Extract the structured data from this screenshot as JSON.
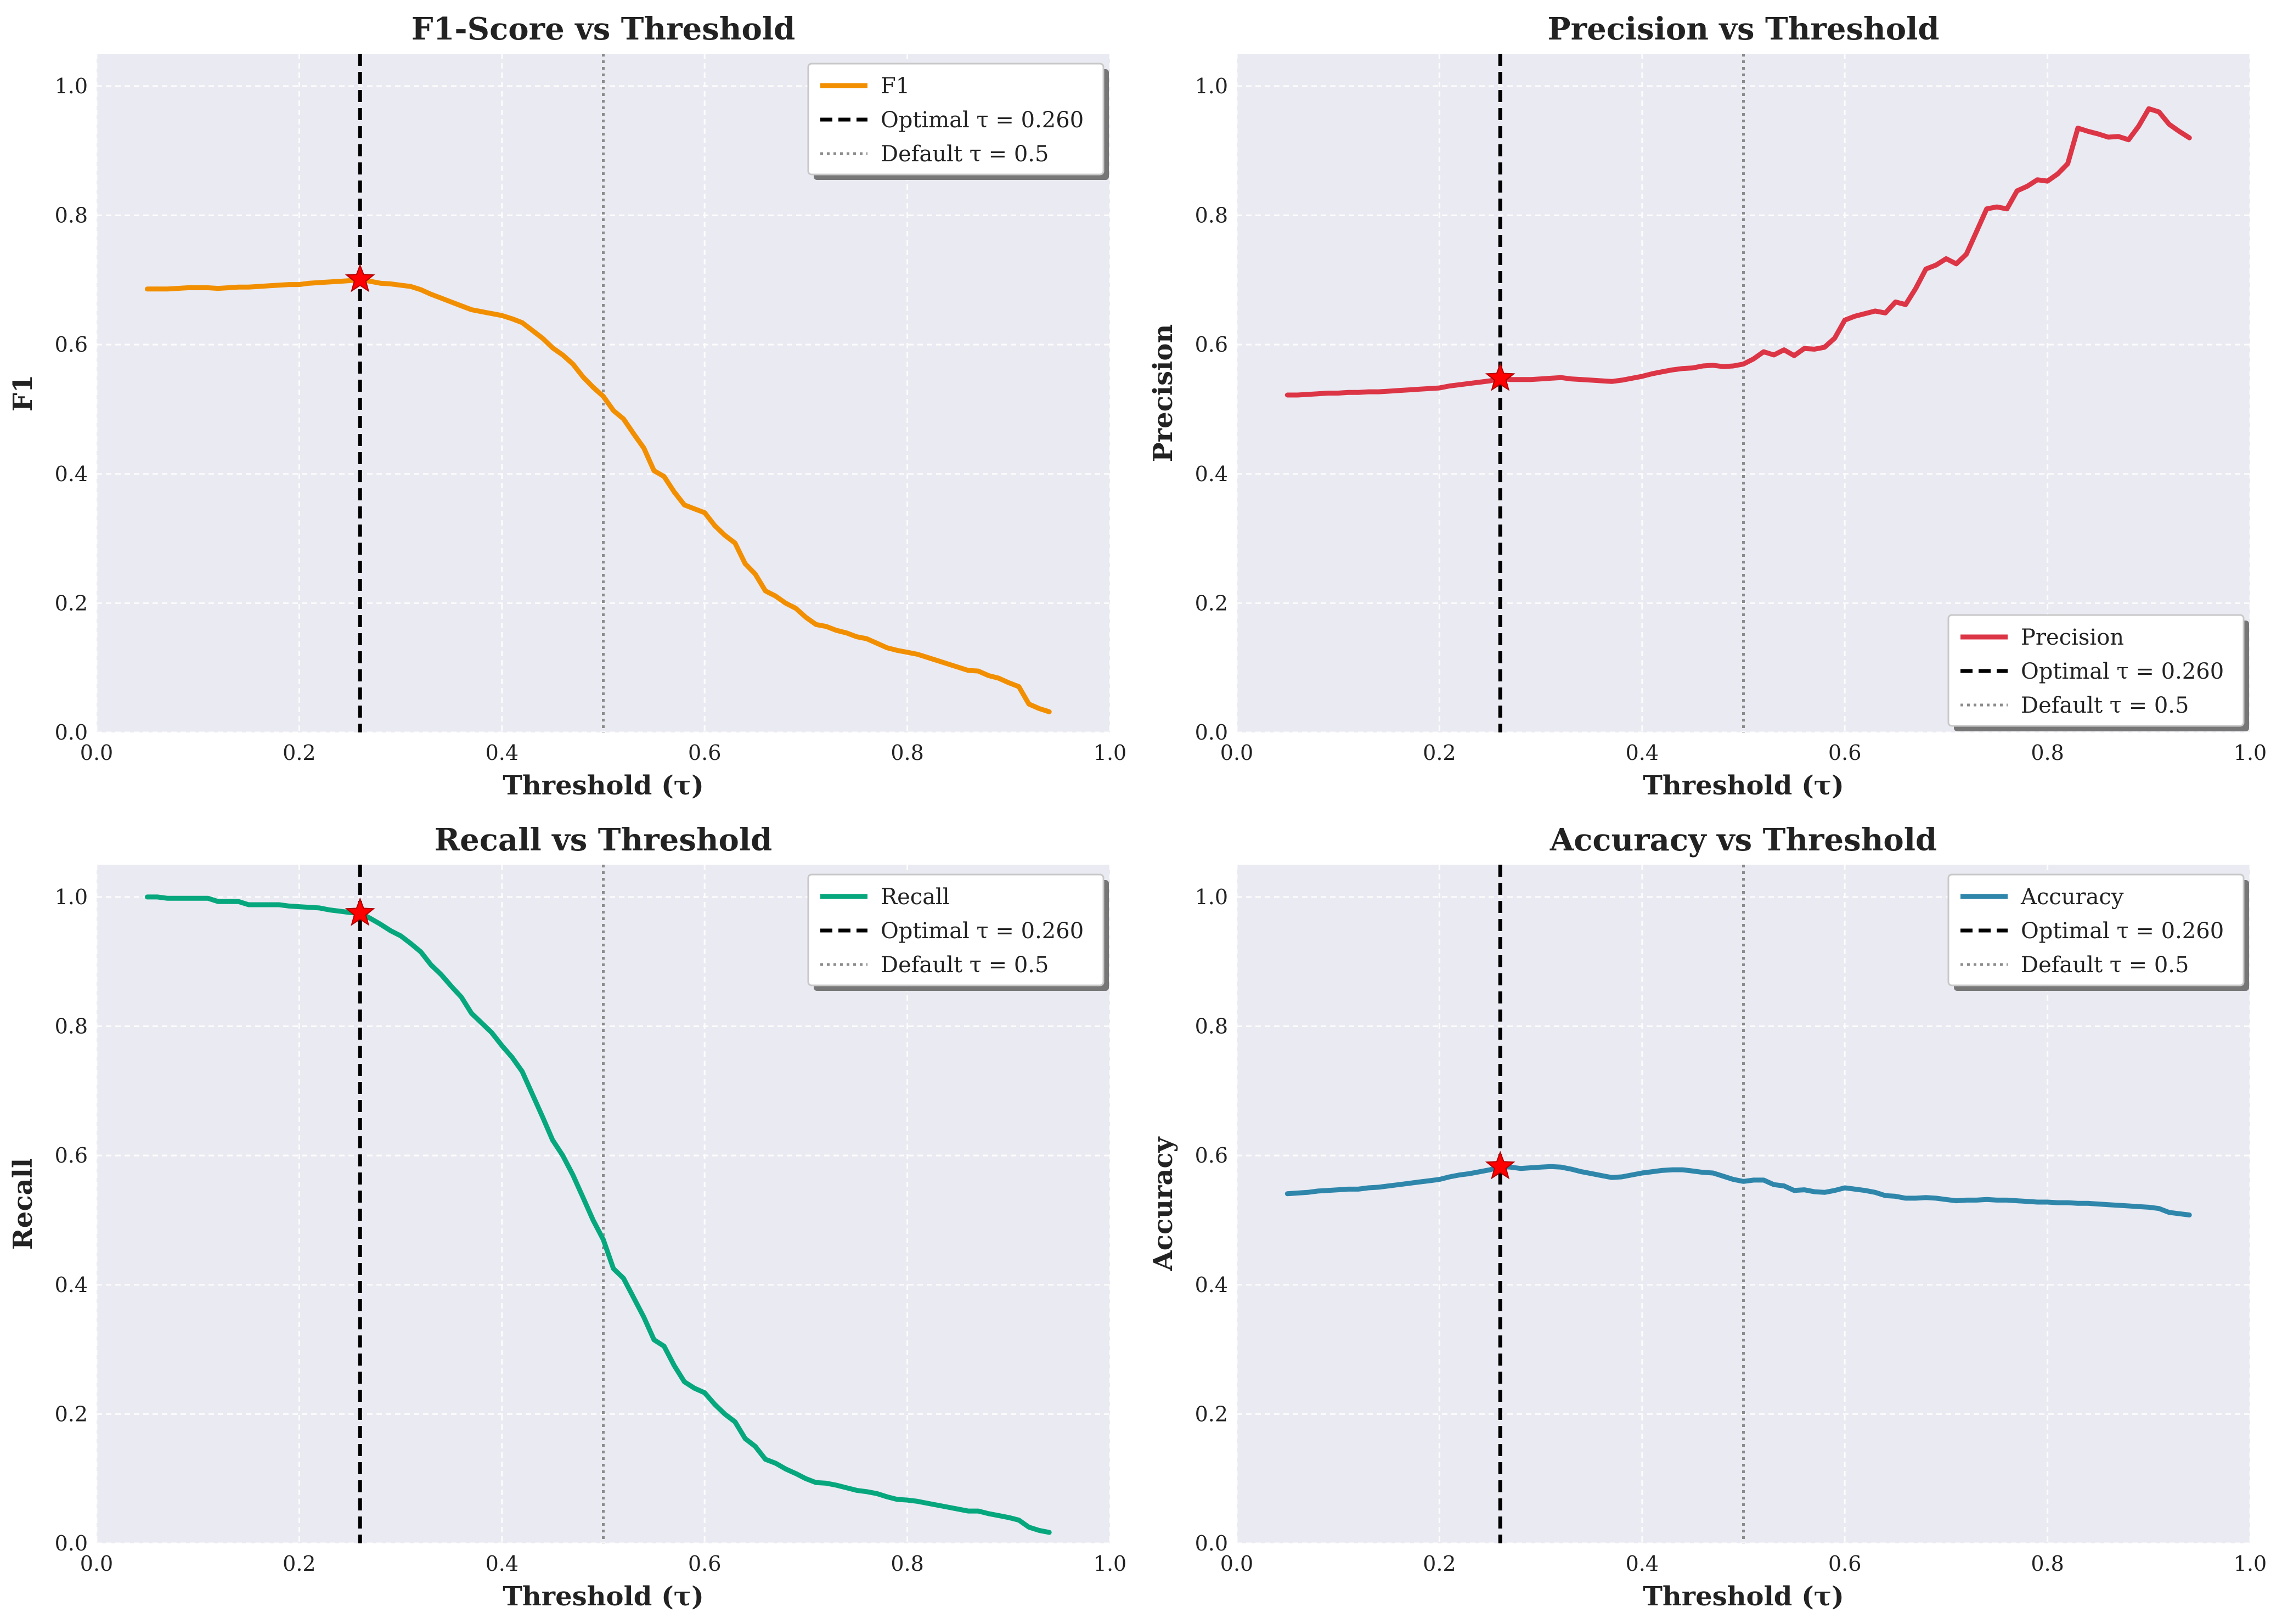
{
  "figure": {
    "background": "#ffffff",
    "plot_background": "#EAEAF2"
  },
  "chart_data": [
    {
      "type": "line",
      "title": "F1-Score vs Threshold",
      "xlabel": "Threshold (τ)",
      "ylabel": "F1",
      "xlim": [
        0.0,
        1.0
      ],
      "ylim": [
        0.0,
        1.05
      ],
      "xticks": [
        "0.0",
        "0.2",
        "0.4",
        "0.6",
        "0.8",
        "1.0"
      ],
      "yticks": [
        "0.0",
        "0.2",
        "0.4",
        "0.6",
        "0.8",
        "1.0"
      ],
      "grid": true,
      "legend_position": "top-right",
      "color": "#F18F01",
      "series": [
        {
          "name": "F1",
          "x": [
            0.05,
            0.06,
            0.07,
            0.08,
            0.09,
            0.1,
            0.11,
            0.12,
            0.13,
            0.14,
            0.15,
            0.16,
            0.17,
            0.18,
            0.19,
            0.2,
            0.21,
            0.22,
            0.23,
            0.24,
            0.25,
            0.26,
            0.27,
            0.28,
            0.29,
            0.3,
            0.31,
            0.32,
            0.33,
            0.34,
            0.35,
            0.36,
            0.37,
            0.38,
            0.39,
            0.4,
            0.41,
            0.42,
            0.43,
            0.44,
            0.45,
            0.46,
            0.47,
            0.48,
            0.49,
            0.5,
            0.51,
            0.52,
            0.53,
            0.54,
            0.55,
            0.56,
            0.57,
            0.58,
            0.59,
            0.6,
            0.61,
            0.62,
            0.63,
            0.64,
            0.65,
            0.66,
            0.67,
            0.68,
            0.69,
            0.7,
            0.71,
            0.72,
            0.73,
            0.74,
            0.75,
            0.76,
            0.77,
            0.78,
            0.79,
            0.8,
            0.81,
            0.82,
            0.83,
            0.84,
            0.85,
            0.86,
            0.87,
            0.88,
            0.89,
            0.9,
            0.91,
            0.92,
            0.93,
            0.94
          ],
          "y": [
            0.686,
            0.686,
            0.686,
            0.687,
            0.688,
            0.688,
            0.688,
            0.687,
            0.688,
            0.689,
            0.689,
            0.69,
            0.691,
            0.692,
            0.693,
            0.693,
            0.695,
            0.696,
            0.697,
            0.698,
            0.699,
            0.701,
            0.698,
            0.695,
            0.694,
            0.692,
            0.69,
            0.685,
            0.678,
            0.672,
            0.666,
            0.66,
            0.654,
            0.651,
            0.648,
            0.645,
            0.64,
            0.634,
            0.622,
            0.61,
            0.595,
            0.584,
            0.57,
            0.55,
            0.534,
            0.52,
            0.498,
            0.485,
            0.462,
            0.44,
            0.405,
            0.396,
            0.372,
            0.352,
            0.346,
            0.34,
            0.32,
            0.305,
            0.293,
            0.261,
            0.245,
            0.219,
            0.211,
            0.2,
            0.192,
            0.178,
            0.167,
            0.164,
            0.158,
            0.154,
            0.148,
            0.145,
            0.138,
            0.131,
            0.127,
            0.124,
            0.121,
            0.116,
            0.111,
            0.106,
            0.101,
            0.096,
            0.095,
            0.088,
            0.084,
            0.077,
            0.071,
            0.044,
            0.037,
            0.032
          ]
        }
      ],
      "optimal_line": {
        "label": "Optimal τ = 0.260",
        "x": 0.26
      },
      "default_line": {
        "label": "Default τ = 0.5",
        "x": 0.5
      },
      "optimal_point": {
        "x": 0.26,
        "y": 0.701
      }
    },
    {
      "type": "line",
      "title": "Precision vs Threshold",
      "xlabel": "Threshold (τ)",
      "ylabel": "Precision",
      "xlim": [
        0.0,
        1.0
      ],
      "ylim": [
        0.0,
        1.05
      ],
      "xticks": [
        "0.0",
        "0.2",
        "0.4",
        "0.6",
        "0.8",
        "1.0"
      ],
      "yticks": [
        "0.0",
        "0.2",
        "0.4",
        "0.6",
        "0.8",
        "1.0"
      ],
      "grid": true,
      "legend_position": "bottom-right",
      "color": "#DC3545",
      "series": [
        {
          "name": "Precision",
          "x": [
            0.05,
            0.06,
            0.07,
            0.08,
            0.09,
            0.1,
            0.11,
            0.12,
            0.13,
            0.14,
            0.15,
            0.16,
            0.17,
            0.18,
            0.19,
            0.2,
            0.21,
            0.22,
            0.23,
            0.24,
            0.25,
            0.26,
            0.27,
            0.28,
            0.29,
            0.3,
            0.31,
            0.32,
            0.33,
            0.34,
            0.35,
            0.36,
            0.37,
            0.38,
            0.39,
            0.4,
            0.41,
            0.42,
            0.43,
            0.44,
            0.45,
            0.46,
            0.47,
            0.48,
            0.49,
            0.5,
            0.51,
            0.52,
            0.53,
            0.54,
            0.55,
            0.56,
            0.57,
            0.58,
            0.59,
            0.6,
            0.61,
            0.62,
            0.63,
            0.64,
            0.65,
            0.66,
            0.67,
            0.68,
            0.69,
            0.7,
            0.71,
            0.72,
            0.73,
            0.74,
            0.75,
            0.76,
            0.77,
            0.78,
            0.79,
            0.8,
            0.81,
            0.82,
            0.83,
            0.84,
            0.85,
            0.86,
            0.87,
            0.88,
            0.89,
            0.9,
            0.91,
            0.92,
            0.93,
            0.94
          ],
          "y": [
            0.522,
            0.522,
            0.523,
            0.524,
            0.525,
            0.525,
            0.526,
            0.526,
            0.527,
            0.527,
            0.528,
            0.529,
            0.53,
            0.531,
            0.532,
            0.533,
            0.536,
            0.538,
            0.54,
            0.542,
            0.544,
            0.548,
            0.546,
            0.546,
            0.546,
            0.547,
            0.548,
            0.549,
            0.547,
            0.546,
            0.545,
            0.544,
            0.543,
            0.545,
            0.548,
            0.551,
            0.555,
            0.558,
            0.561,
            0.563,
            0.564,
            0.567,
            0.568,
            0.566,
            0.567,
            0.57,
            0.578,
            0.589,
            0.584,
            0.592,
            0.583,
            0.594,
            0.593,
            0.596,
            0.61,
            0.638,
            0.644,
            0.648,
            0.652,
            0.649,
            0.666,
            0.662,
            0.687,
            0.717,
            0.723,
            0.733,
            0.725,
            0.74,
            0.775,
            0.81,
            0.813,
            0.81,
            0.838,
            0.845,
            0.855,
            0.853,
            0.864,
            0.88,
            0.935,
            0.93,
            0.926,
            0.921,
            0.922,
            0.917,
            0.938,
            0.965,
            0.96,
            0.941,
            0.93,
            0.92
          ]
        }
      ],
      "optimal_line": {
        "label": "Optimal τ = 0.260",
        "x": 0.26
      },
      "default_line": {
        "label": "Default τ = 0.5",
        "x": 0.5
      },
      "optimal_point": {
        "x": 0.26,
        "y": 0.548
      }
    },
    {
      "type": "line",
      "title": "Recall vs Threshold",
      "xlabel": "Threshold (τ)",
      "ylabel": "Recall",
      "xlim": [
        0.0,
        1.0
      ],
      "ylim": [
        0.0,
        1.05
      ],
      "xticks": [
        "0.0",
        "0.2",
        "0.4",
        "0.6",
        "0.8",
        "1.0"
      ],
      "yticks": [
        "0.0",
        "0.2",
        "0.4",
        "0.6",
        "0.8",
        "1.0"
      ],
      "grid": true,
      "legend_position": "top-right",
      "color": "#06A77D",
      "series": [
        {
          "name": "Recall",
          "x": [
            0.05,
            0.06,
            0.07,
            0.08,
            0.09,
            0.1,
            0.11,
            0.12,
            0.13,
            0.14,
            0.15,
            0.16,
            0.17,
            0.18,
            0.19,
            0.2,
            0.21,
            0.22,
            0.23,
            0.24,
            0.25,
            0.26,
            0.27,
            0.28,
            0.29,
            0.3,
            0.31,
            0.32,
            0.33,
            0.34,
            0.35,
            0.36,
            0.37,
            0.38,
            0.39,
            0.4,
            0.41,
            0.42,
            0.43,
            0.44,
            0.45,
            0.46,
            0.47,
            0.48,
            0.49,
            0.5,
            0.51,
            0.52,
            0.53,
            0.54,
            0.55,
            0.56,
            0.57,
            0.58,
            0.59,
            0.6,
            0.61,
            0.62,
            0.63,
            0.64,
            0.65,
            0.66,
            0.67,
            0.68,
            0.69,
            0.7,
            0.71,
            0.72,
            0.73,
            0.74,
            0.75,
            0.76,
            0.77,
            0.78,
            0.79,
            0.8,
            0.81,
            0.82,
            0.83,
            0.84,
            0.85,
            0.86,
            0.87,
            0.88,
            0.89,
            0.9,
            0.91,
            0.92,
            0.93,
            0.94
          ],
          "y": [
            1.0,
            1.0,
            0.998,
            0.998,
            0.998,
            0.998,
            0.998,
            0.993,
            0.993,
            0.993,
            0.988,
            0.988,
            0.988,
            0.988,
            0.986,
            0.985,
            0.984,
            0.983,
            0.98,
            0.978,
            0.976,
            0.975,
            0.967,
            0.958,
            0.948,
            0.94,
            0.928,
            0.915,
            0.895,
            0.88,
            0.862,
            0.845,
            0.82,
            0.805,
            0.79,
            0.77,
            0.752,
            0.73,
            0.695,
            0.66,
            0.624,
            0.6,
            0.57,
            0.535,
            0.5,
            0.47,
            0.425,
            0.41,
            0.38,
            0.35,
            0.315,
            0.305,
            0.275,
            0.25,
            0.24,
            0.233,
            0.215,
            0.2,
            0.188,
            0.162,
            0.15,
            0.13,
            0.124,
            0.115,
            0.108,
            0.1,
            0.094,
            0.093,
            0.09,
            0.086,
            0.082,
            0.08,
            0.077,
            0.072,
            0.068,
            0.067,
            0.065,
            0.062,
            0.059,
            0.056,
            0.053,
            0.05,
            0.05,
            0.046,
            0.043,
            0.04,
            0.036,
            0.025,
            0.02,
            0.017
          ]
        }
      ],
      "optimal_line": {
        "label": "Optimal τ = 0.260",
        "x": 0.26
      },
      "default_line": {
        "label": "Default τ = 0.5",
        "x": 0.5
      },
      "optimal_point": {
        "x": 0.26,
        "y": 0.975
      }
    },
    {
      "type": "line",
      "title": "Accuracy vs Threshold",
      "xlabel": "Threshold (τ)",
      "ylabel": "Accuracy",
      "xlim": [
        0.0,
        1.0
      ],
      "ylim": [
        0.0,
        1.05
      ],
      "xticks": [
        "0.0",
        "0.2",
        "0.4",
        "0.6",
        "0.8",
        "1.0"
      ],
      "yticks": [
        "0.0",
        "0.2",
        "0.4",
        "0.6",
        "0.8",
        "1.0"
      ],
      "grid": true,
      "legend_position": "top-right",
      "color": "#2E86AB",
      "series": [
        {
          "name": "Accuracy",
          "x": [
            0.05,
            0.06,
            0.07,
            0.08,
            0.09,
            0.1,
            0.11,
            0.12,
            0.13,
            0.14,
            0.15,
            0.16,
            0.17,
            0.18,
            0.19,
            0.2,
            0.21,
            0.22,
            0.23,
            0.24,
            0.25,
            0.26,
            0.27,
            0.28,
            0.29,
            0.3,
            0.31,
            0.32,
            0.33,
            0.34,
            0.35,
            0.36,
            0.37,
            0.38,
            0.39,
            0.4,
            0.41,
            0.42,
            0.43,
            0.44,
            0.45,
            0.46,
            0.47,
            0.48,
            0.49,
            0.5,
            0.51,
            0.52,
            0.53,
            0.54,
            0.55,
            0.56,
            0.57,
            0.58,
            0.59,
            0.6,
            0.61,
            0.62,
            0.63,
            0.64,
            0.65,
            0.66,
            0.67,
            0.68,
            0.69,
            0.7,
            0.71,
            0.72,
            0.73,
            0.74,
            0.75,
            0.76,
            0.77,
            0.78,
            0.79,
            0.8,
            0.81,
            0.82,
            0.83,
            0.84,
            0.85,
            0.86,
            0.87,
            0.88,
            0.89,
            0.9,
            0.91,
            0.92,
            0.93,
            0.94
          ],
          "y": [
            0.541,
            0.542,
            0.543,
            0.545,
            0.546,
            0.547,
            0.548,
            0.548,
            0.55,
            0.551,
            0.553,
            0.555,
            0.557,
            0.559,
            0.561,
            0.563,
            0.567,
            0.57,
            0.572,
            0.575,
            0.578,
            0.583,
            0.582,
            0.58,
            0.581,
            0.582,
            0.583,
            0.582,
            0.579,
            0.575,
            0.572,
            0.569,
            0.566,
            0.567,
            0.57,
            0.573,
            0.575,
            0.577,
            0.578,
            0.578,
            0.576,
            0.574,
            0.573,
            0.568,
            0.563,
            0.56,
            0.562,
            0.562,
            0.555,
            0.553,
            0.546,
            0.547,
            0.544,
            0.543,
            0.546,
            0.55,
            0.548,
            0.546,
            0.543,
            0.538,
            0.537,
            0.534,
            0.534,
            0.535,
            0.534,
            0.532,
            0.53,
            0.531,
            0.531,
            0.532,
            0.531,
            0.531,
            0.53,
            0.529,
            0.528,
            0.528,
            0.527,
            0.527,
            0.526,
            0.526,
            0.525,
            0.524,
            0.523,
            0.522,
            0.521,
            0.52,
            0.518,
            0.512,
            0.51,
            0.508
          ]
        }
      ],
      "optimal_line": {
        "label": "Optimal τ = 0.260",
        "x": 0.26
      },
      "default_line": {
        "label": "Default τ = 0.5",
        "x": 0.5
      },
      "optimal_point": {
        "x": 0.26,
        "y": 0.583
      }
    }
  ]
}
